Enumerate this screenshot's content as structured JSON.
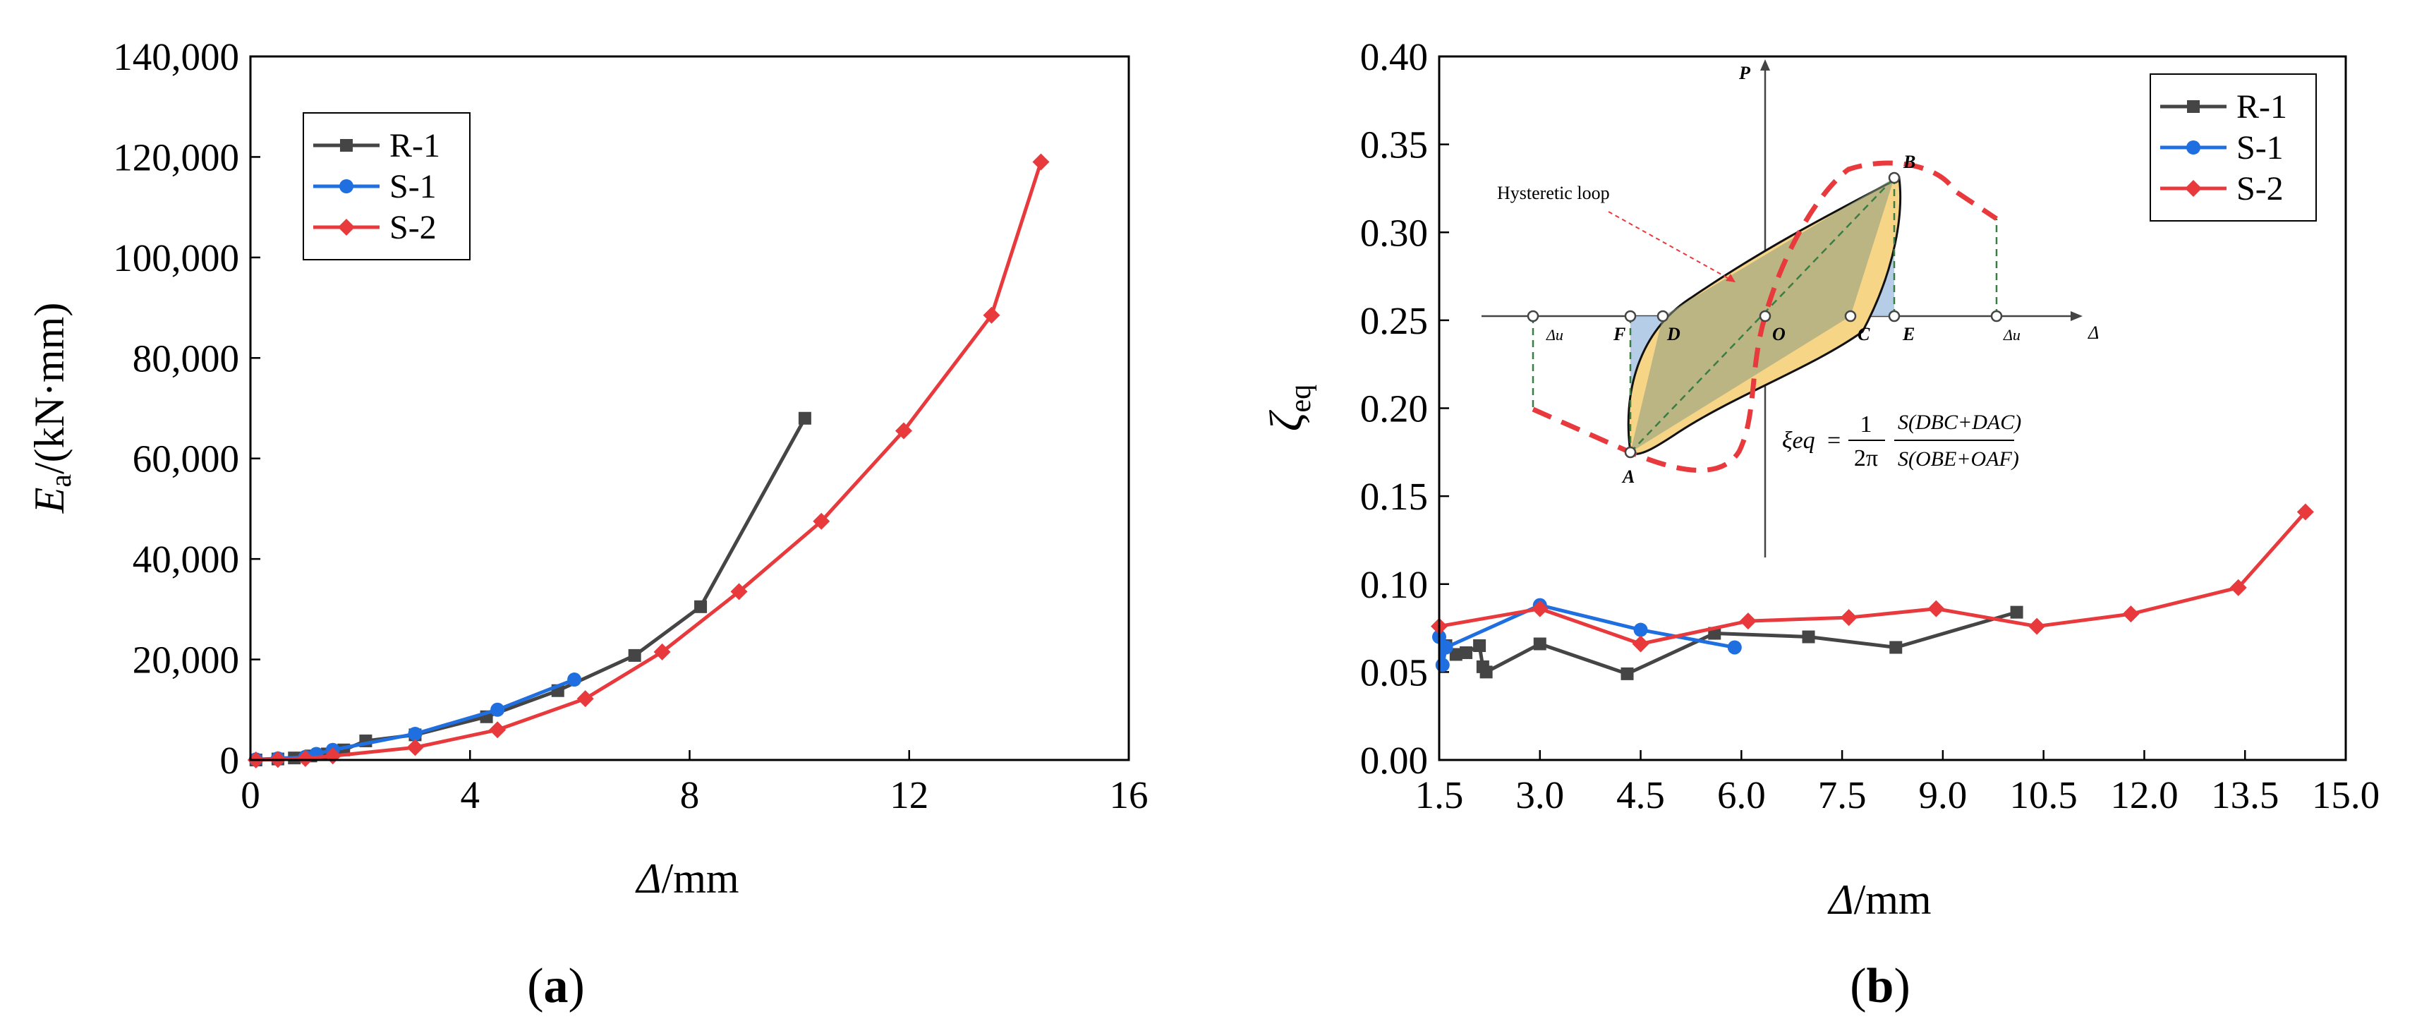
{
  "chart_data": [
    {
      "type": "line",
      "panel_label": "(a)",
      "xlabel": "Δ/mm",
      "ylabel": "E_a/(kN·mm)",
      "ylabel_parts": {
        "symbol": "E",
        "sub": "a",
        "unit": "/(kN·mm)"
      },
      "xlim": [
        0,
        16
      ],
      "ylim": [
        0,
        140000
      ],
      "xticks": [
        0,
        4,
        8,
        12,
        16
      ],
      "xtick_labels": [
        "0",
        "4",
        "8",
        "12",
        "16"
      ],
      "yticks": [
        0,
        20000,
        40000,
        60000,
        80000,
        100000,
        120000,
        140000
      ],
      "ytick_labels": [
        "0",
        "20,000",
        "40,000",
        "60,000",
        "80,000",
        "100,000",
        "120,000",
        "140,000"
      ],
      "legend": [
        "R-1",
        "S-1",
        "S-2"
      ],
      "legend_position": "top-left",
      "series": [
        {
          "name": "R-1",
          "color": "#454545",
          "marker": "square",
          "x": [
            0.1,
            0.5,
            0.8,
            1.1,
            1.4,
            1.7,
            2.1,
            3.0,
            4.3,
            5.6,
            7.0,
            8.2,
            10.1
          ],
          "y": [
            0,
            200,
            400,
            800,
            1200,
            2000,
            3800,
            5000,
            8600,
            13800,
            20800,
            30500,
            68000
          ]
        },
        {
          "name": "S-1",
          "color": "#1f6fe0",
          "marker": "circle",
          "x": [
            0.1,
            0.5,
            1.0,
            1.2,
            1.5,
            3.0,
            4.5,
            5.9
          ],
          "y": [
            100,
            300,
            600,
            1200,
            2000,
            5200,
            10000,
            16000
          ]
        },
        {
          "name": "S-2",
          "color": "#e8393d",
          "marker": "diamond",
          "x": [
            0.1,
            0.5,
            1.0,
            1.5,
            3.0,
            4.5,
            6.1,
            7.5,
            8.9,
            10.4,
            11.9,
            13.5,
            14.4
          ],
          "y": [
            0,
            100,
            300,
            800,
            2500,
            6000,
            12200,
            21500,
            33500,
            47500,
            65500,
            88500,
            119000
          ]
        }
      ]
    },
    {
      "type": "line",
      "panel_label": "(b)",
      "xlabel": "Δ/mm",
      "ylabel": "ζeq",
      "ylabel_parts": {
        "symbol": "ζ",
        "sub": "eq"
      },
      "xlim": [
        1.5,
        15.0
      ],
      "ylim": [
        0.0,
        0.4
      ],
      "xticks": [
        1.5,
        3.0,
        4.5,
        6.0,
        7.5,
        9.0,
        10.5,
        12.0,
        13.5,
        15.0
      ],
      "xtick_labels": [
        "1.5",
        "3.0",
        "4.5",
        "6.0",
        "7.5",
        "9.0",
        "10.5",
        "12.0",
        "13.5",
        "15.0"
      ],
      "yticks": [
        0.0,
        0.05,
        0.1,
        0.15,
        0.2,
        0.25,
        0.3,
        0.35,
        0.4
      ],
      "ytick_labels": [
        "0.00",
        "0.05",
        "0.10",
        "0.15",
        "0.20",
        "0.25",
        "0.30",
        "0.35",
        "0.40"
      ],
      "legend": [
        "R-1",
        "S-1",
        "S-2"
      ],
      "legend_position": "top-right",
      "series": [
        {
          "name": "R-1",
          "color": "#454545",
          "marker": "square",
          "x": [
            1.6,
            1.75,
            1.9,
            2.1,
            2.15,
            2.2,
            3.0,
            4.3,
            5.6,
            7.0,
            8.3,
            10.1
          ],
          "y": [
            0.065,
            0.06,
            0.061,
            0.065,
            0.053,
            0.05,
            0.066,
            0.049,
            0.072,
            0.07,
            0.064,
            0.084
          ]
        },
        {
          "name": "S-1",
          "color": "#1f6fe0",
          "marker": "circle",
          "x": [
            1.5,
            1.55,
            1.6,
            3.0,
            4.5,
            5.9
          ],
          "y": [
            0.07,
            0.054,
            0.064,
            0.088,
            0.074,
            0.064
          ]
        },
        {
          "name": "S-2",
          "color": "#e8393d",
          "marker": "diamond",
          "x": [
            1.5,
            3.0,
            4.5,
            6.1,
            7.6,
            8.9,
            10.4,
            11.8,
            13.4,
            14.4
          ],
          "y": [
            0.076,
            0.086,
            0.066,
            0.079,
            0.081,
            0.086,
            0.076,
            0.083,
            0.098,
            0.141
          ]
        }
      ],
      "inset": {
        "axis_p": "P",
        "axis_delta": "Δ",
        "delta_u_left": "Δu",
        "delta_u_right": "Δu",
        "hysteretic_label": "Hysteretic loop",
        "points": {
          "A": "A",
          "B": "B",
          "C": "C",
          "D": "D",
          "E": "E",
          "F": "F",
          "O": "O"
        },
        "formula": {
          "lhs": "ξeq",
          "eq": "=",
          "one": "1",
          "two_pi": "2π",
          "num": "S(DBC+DAC)",
          "den": "S(OBE+OAF)"
        }
      }
    }
  ]
}
